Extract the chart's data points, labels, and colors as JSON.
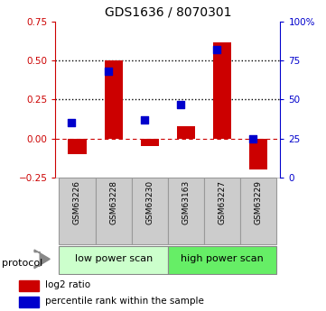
{
  "title": "GDS1636 / 8070301",
  "samples": [
    "GSM63226",
    "GSM63228",
    "GSM63230",
    "GSM63163",
    "GSM63227",
    "GSM63229"
  ],
  "log2_ratio": [
    -0.1,
    0.5,
    -0.05,
    0.08,
    0.62,
    -0.2
  ],
  "percentile_rank": [
    35,
    68,
    37,
    47,
    82,
    25
  ],
  "protocol_labels": [
    "low power scan",
    "high power scan"
  ],
  "protocol_colors": [
    "#ccffcc",
    "#66ee66"
  ],
  "left_ylim": [
    -0.25,
    0.75
  ],
  "right_ylim": [
    0,
    100
  ],
  "left_yticks": [
    -0.25,
    0,
    0.25,
    0.5,
    0.75
  ],
  "right_yticks": [
    0,
    25,
    50,
    75,
    100
  ],
  "right_yticklabels": [
    "0",
    "25",
    "50",
    "75",
    "100%"
  ],
  "bar_color": "#cc0000",
  "dot_color": "#0000cc",
  "hline_y": 0,
  "dotted_lines": [
    0.25,
    0.5
  ],
  "bar_width": 0.5,
  "dot_size": 40,
  "background_color": "#ffffff",
  "legend_items": [
    "log2 ratio",
    "percentile rank within the sample"
  ]
}
